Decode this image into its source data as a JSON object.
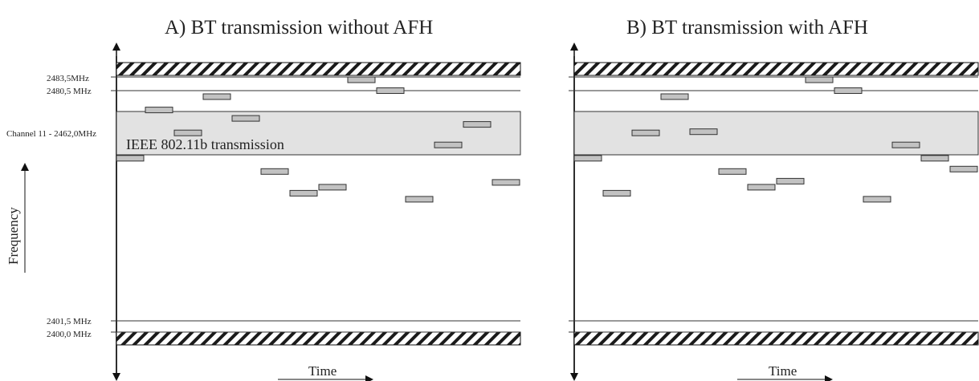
{
  "panels": [
    {
      "title": "A) BT transmission without AFH",
      "wlan_label": "IEEE 802.11b transmission",
      "hops": [
        {
          "slot": 0,
          "level": 0.72
        },
        {
          "slot": 1,
          "level": 0.92
        },
        {
          "slot": 2,
          "level": 0.825
        },
        {
          "slot": 3,
          "level": 0.975
        },
        {
          "slot": 4,
          "level": 0.885
        },
        {
          "slot": 5,
          "level": 0.665
        },
        {
          "slot": 6,
          "level": 0.575
        },
        {
          "slot": 7,
          "level": 0.6
        },
        {
          "slot": 8,
          "level": 1.045
        },
        {
          "slot": 9,
          "level": 1.0
        },
        {
          "slot": 10,
          "level": 0.55
        },
        {
          "slot": 11,
          "level": 0.775
        },
        {
          "slot": 12,
          "level": 0.86
        },
        {
          "slot": 13,
          "level": 0.62
        }
      ]
    },
    {
      "title": "B) BT transmission with AFH",
      "wlan_label": "",
      "hops": [
        {
          "slot": 0,
          "level": 0.72
        },
        {
          "slot": 1,
          "level": 0.575
        },
        {
          "slot": 2,
          "level": 0.825
        },
        {
          "slot": 3,
          "level": 0.975
        },
        {
          "slot": 4,
          "level": 0.83
        },
        {
          "slot": 5,
          "level": 0.665
        },
        {
          "slot": 6,
          "level": 0.6
        },
        {
          "slot": 7,
          "level": 0.625
        },
        {
          "slot": 8,
          "level": 1.045
        },
        {
          "slot": 9,
          "level": 1.0
        },
        {
          "slot": 10,
          "level": 0.55
        },
        {
          "slot": 11,
          "level": 0.775
        },
        {
          "slot": 12,
          "level": 0.72
        },
        {
          "slot": 13,
          "level": 0.675
        }
      ]
    }
  ],
  "freq_labels": {
    "top_band": "2483,5MHz",
    "top_limit": "2480,5 MHz",
    "channel": "Channel 11 - 2462,0MHz",
    "bottom_limit": "2401,5 MHz",
    "bottom_band": "2400,0 MHz"
  },
  "axis_titles": {
    "frequency": "Frequency",
    "time": "Time"
  },
  "colors": {
    "hop_fill": "#c2c2c2",
    "wlan_fill": "#e2e2e2",
    "line": "#333333"
  }
}
